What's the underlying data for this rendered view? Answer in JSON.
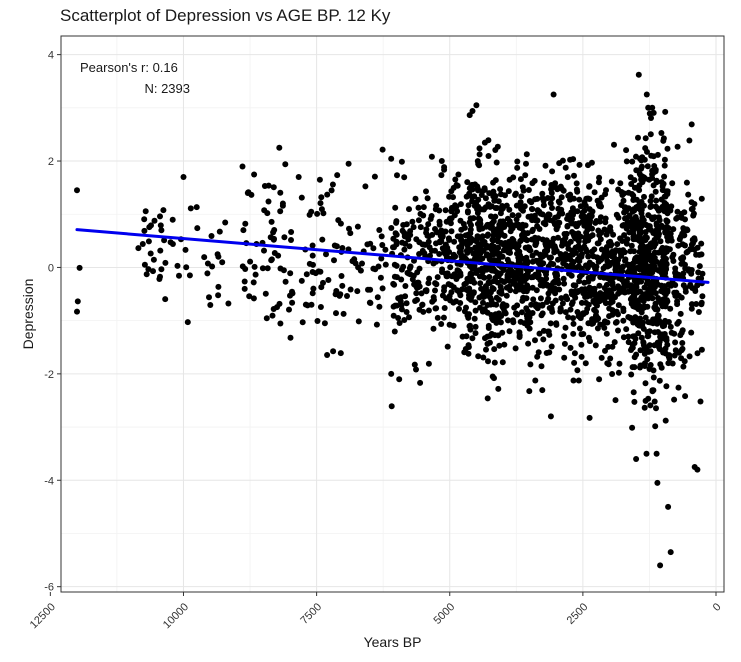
{
  "chart_data": {
    "type": "scatter",
    "title": "Scatterplot of Depression vs AGE BP. 12 Ky",
    "xlabel": "Years BP",
    "ylabel": "Depression",
    "x_reversed": true,
    "xlim": [
      12300,
      -150
    ],
    "ylim": [
      -6.1,
      4.35
    ],
    "x_ticks": [
      12500,
      10000,
      7500,
      5000,
      2500,
      0
    ],
    "x_tick_labels": [
      "12500",
      "10000",
      "7500",
      "5000",
      "2500",
      "0"
    ],
    "y_ticks": [
      4,
      2,
      0,
      -2,
      -4,
      -6
    ],
    "y_tick_labels": [
      "4",
      "2",
      "0",
      "-2",
      "-4",
      "-6"
    ],
    "grid": true,
    "annotations": {
      "pearson": "Pearson's r: 0.16",
      "n": "N: 2393"
    },
    "regression_line": {
      "color": "#0000ee",
      "x": [
        12000,
        150
      ],
      "y": [
        0.71,
        -0.28
      ]
    },
    "point_color": "#000000",
    "point_count": 2393,
    "clusters": [
      {
        "x_range": [
          12050,
          11950
        ],
        "y_mean": 0.4,
        "y_sd": 1.0,
        "n": 2
      },
      {
        "x_range": [
          10850,
          10350
        ],
        "y_mean": 0.5,
        "y_sd": 0.45,
        "n": 24
      },
      {
        "x_range": [
          10350,
          9100
        ],
        "y_mean": 0.3,
        "y_sd": 0.55,
        "n": 30
      },
      {
        "x_range": [
          8900,
          7000
        ],
        "y_mean": 0.2,
        "y_sd": 0.8,
        "n": 120
      },
      {
        "x_range": [
          7000,
          6200
        ],
        "y_mean": 0.2,
        "y_sd": 0.7,
        "n": 40
      },
      {
        "x_range": [
          6100,
          5200
        ],
        "y_mean": 0.0,
        "y_sd": 0.75,
        "n": 150
      },
      {
        "x_range": [
          5200,
          4700
        ],
        "y_mean": 0.2,
        "y_sd": 0.7,
        "n": 130
      },
      {
        "x_range": [
          4700,
          4000
        ],
        "y_mean": 0.1,
        "y_sd": 0.9,
        "n": 340
      },
      {
        "x_range": [
          4000,
          3300
        ],
        "y_mean": 0.1,
        "y_sd": 0.85,
        "n": 260
      },
      {
        "x_range": [
          3300,
          2400
        ],
        "y_mean": 0.1,
        "y_sd": 0.85,
        "n": 330
      },
      {
        "x_range": [
          2400,
          1600
        ],
        "y_mean": 0.0,
        "y_sd": 0.85,
        "n": 300
      },
      {
        "x_range": [
          1600,
          900
        ],
        "y_mean": -0.1,
        "y_sd": 1.2,
        "n": 520
      },
      {
        "x_range": [
          900,
          250
        ],
        "y_mean": 0.0,
        "y_sd": 0.95,
        "n": 147
      }
    ],
    "notable_points": [
      {
        "x": 12000,
        "y": 1.45
      },
      {
        "x": 12000,
        "y": -0.83
      },
      {
        "x": 10000,
        "y": 1.7
      },
      {
        "x": 8200,
        "y": 2.25
      },
      {
        "x": 6900,
        "y": 1.95
      },
      {
        "x": 6100,
        "y": -2.0
      },
      {
        "x": 5950,
        "y": -2.1
      },
      {
        "x": 5150,
        "y": 2.0
      },
      {
        "x": 4500,
        "y": 3.05
      },
      {
        "x": 3050,
        "y": 3.25
      },
      {
        "x": 3100,
        "y": -2.8
      },
      {
        "x": 1450,
        "y": 3.62
      },
      {
        "x": 1500,
        "y": -3.6
      },
      {
        "x": 1300,
        "y": 3.25
      },
      {
        "x": 1100,
        "y": -4.05
      },
      {
        "x": 900,
        "y": -4.5
      },
      {
        "x": 1050,
        "y": -5.6
      },
      {
        "x": 850,
        "y": -5.35
      },
      {
        "x": 350,
        "y": -3.8
      },
      {
        "x": 400,
        "y": -3.75
      }
    ]
  }
}
